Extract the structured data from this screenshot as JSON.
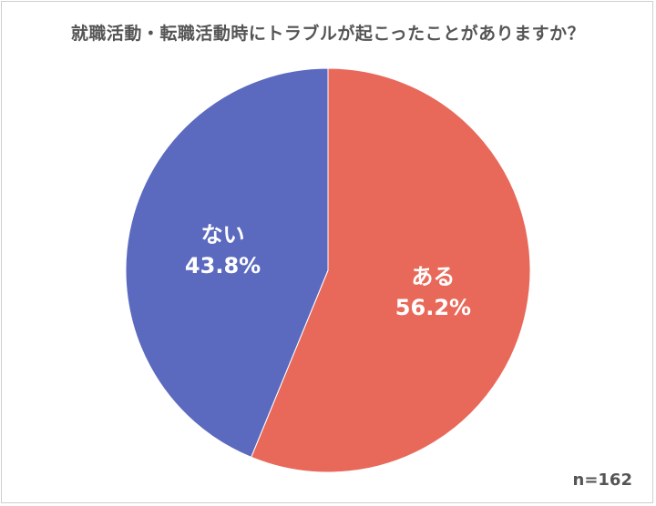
{
  "chart_data": {
    "type": "pie",
    "title": "就職活動・転職活動時にトラブルが起こったことがありますか？",
    "slices": [
      {
        "label": "ある",
        "value": 56.2,
        "value_label": "56.2%",
        "color": "#E8695A"
      },
      {
        "label": "ない",
        "value": 43.8,
        "value_label": "43.8%",
        "color": "#5B6ABF"
      }
    ],
    "start": "top, clockwise",
    "note": "n=162"
  }
}
